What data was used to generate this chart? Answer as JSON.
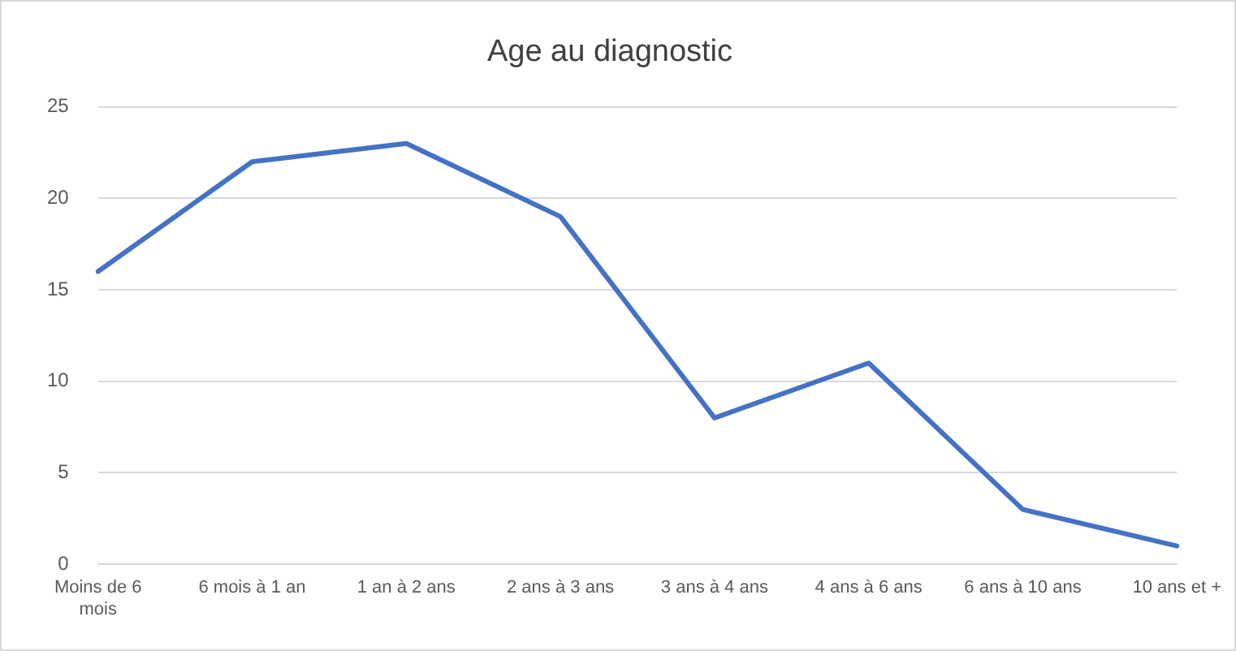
{
  "chart_data": {
    "type": "line",
    "title": "Age au diagnostic",
    "categories": [
      "Moins de 6 mois",
      "6 mois à 1 an",
      "1 an à 2 ans",
      "2 ans à 3 ans",
      "3 ans à 4 ans",
      "4 ans à 6 ans",
      "6 ans à 10 ans",
      "10 ans et +"
    ],
    "values": [
      16,
      22,
      23,
      19,
      8,
      11,
      3,
      1
    ],
    "color": "#4472c4",
    "ylim": [
      0,
      25
    ],
    "yticks": [
      0,
      5,
      10,
      15,
      20,
      25
    ],
    "grid": "y",
    "legend": false,
    "marker": "none",
    "line_style": "solid"
  }
}
